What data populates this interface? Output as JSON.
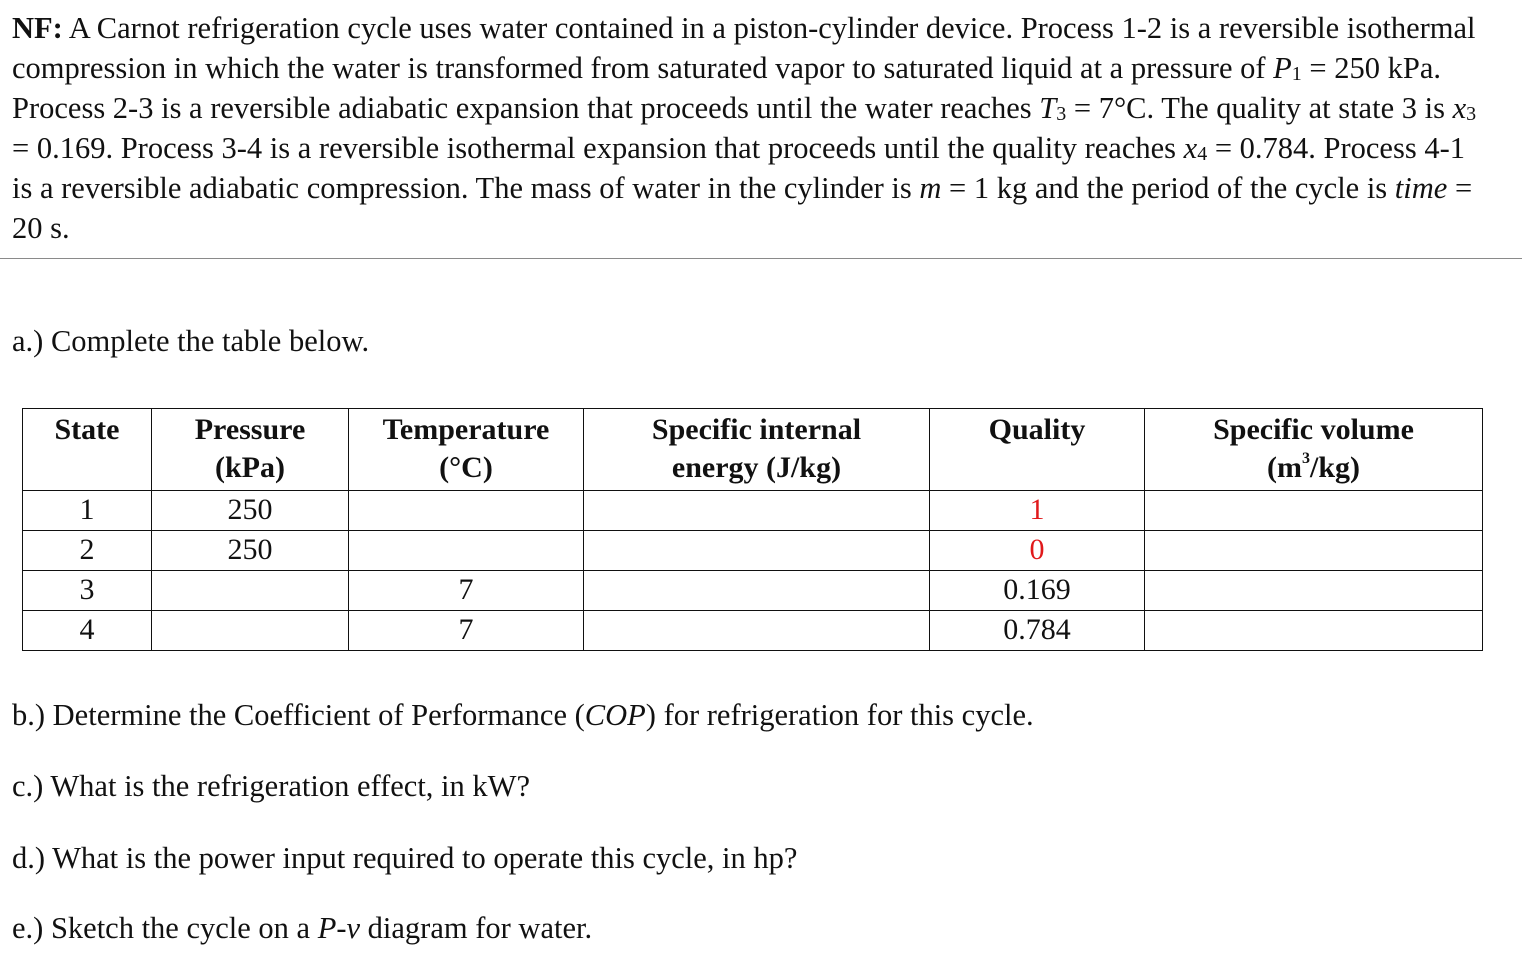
{
  "problem": {
    "lead": "NF:",
    "s1": " A Carnot refrigeration cycle uses water contained in a piston-cylinder device. Process 1-2 is a reversible isothermal compression in which the water is transformed from saturated vapor to saturated liquid at a pressure of ",
    "p1_sym": "P",
    "p1_sub": "1",
    "s2": " = 250 kPa. Process 2-3 is a reversible adiabatic expansion that proceeds until the water reaches ",
    "t3_sym": "T",
    "t3_sub": "3",
    "s3": " = 7°C. The quality at state 3 is ",
    "x3_sym": "x",
    "x3_sub": "3",
    "s4": " = 0.169. Process 3-4 is a reversible isothermal expansion that proceeds until the quality reaches ",
    "x4_sym": "x",
    "x4_sub": "4",
    "s5": " = 0.784. Process 4-1 is a reversible adiabatic compression. The mass of water in the cylinder is ",
    "m_sym": "m",
    "s6": " = 1 kg and the period of the cycle is ",
    "time_sym": "time",
    "s7": " = 20 s."
  },
  "questions": {
    "a": "a.) Complete the table below.",
    "b_pre": "b.) Determine the Coefficient of Performance (",
    "b_sym": "COP",
    "b_post": ") for refrigeration for this cycle.",
    "c": "c.) What is the refrigeration effect, in kW?",
    "d": "d.) What is the power input required to operate this cycle, in hp?",
    "e_pre": "e.) Sketch the cycle on a ",
    "e_sym": "P-v",
    "e_post": " diagram for water."
  },
  "table": {
    "headers": {
      "state": "State",
      "pressure_1": "Pressure",
      "pressure_2": "(kPa)",
      "temperature_1": "Temperature",
      "temperature_2": "(°C)",
      "energy_1": "Specific internal",
      "energy_2": "energy (J/kg)",
      "quality": "Quality",
      "volume_1": "Specific volume",
      "volume_2a": "(m",
      "volume_2sup": "3",
      "volume_2b": "/kg)"
    },
    "rows": [
      {
        "state": "1",
        "pressure": "250",
        "temperature": "",
        "energy": "",
        "quality": "1",
        "volume": ""
      },
      {
        "state": "2",
        "pressure": "250",
        "temperature": "",
        "energy": "",
        "quality": "0",
        "volume": ""
      },
      {
        "state": "3",
        "pressure": "",
        "temperature": "7",
        "energy": "",
        "quality": "0.169",
        "volume": ""
      },
      {
        "state": "4",
        "pressure": "",
        "temperature": "7",
        "energy": "",
        "quality": "0.784",
        "volume": ""
      }
    ],
    "highlight_color": "#e0191b"
  }
}
